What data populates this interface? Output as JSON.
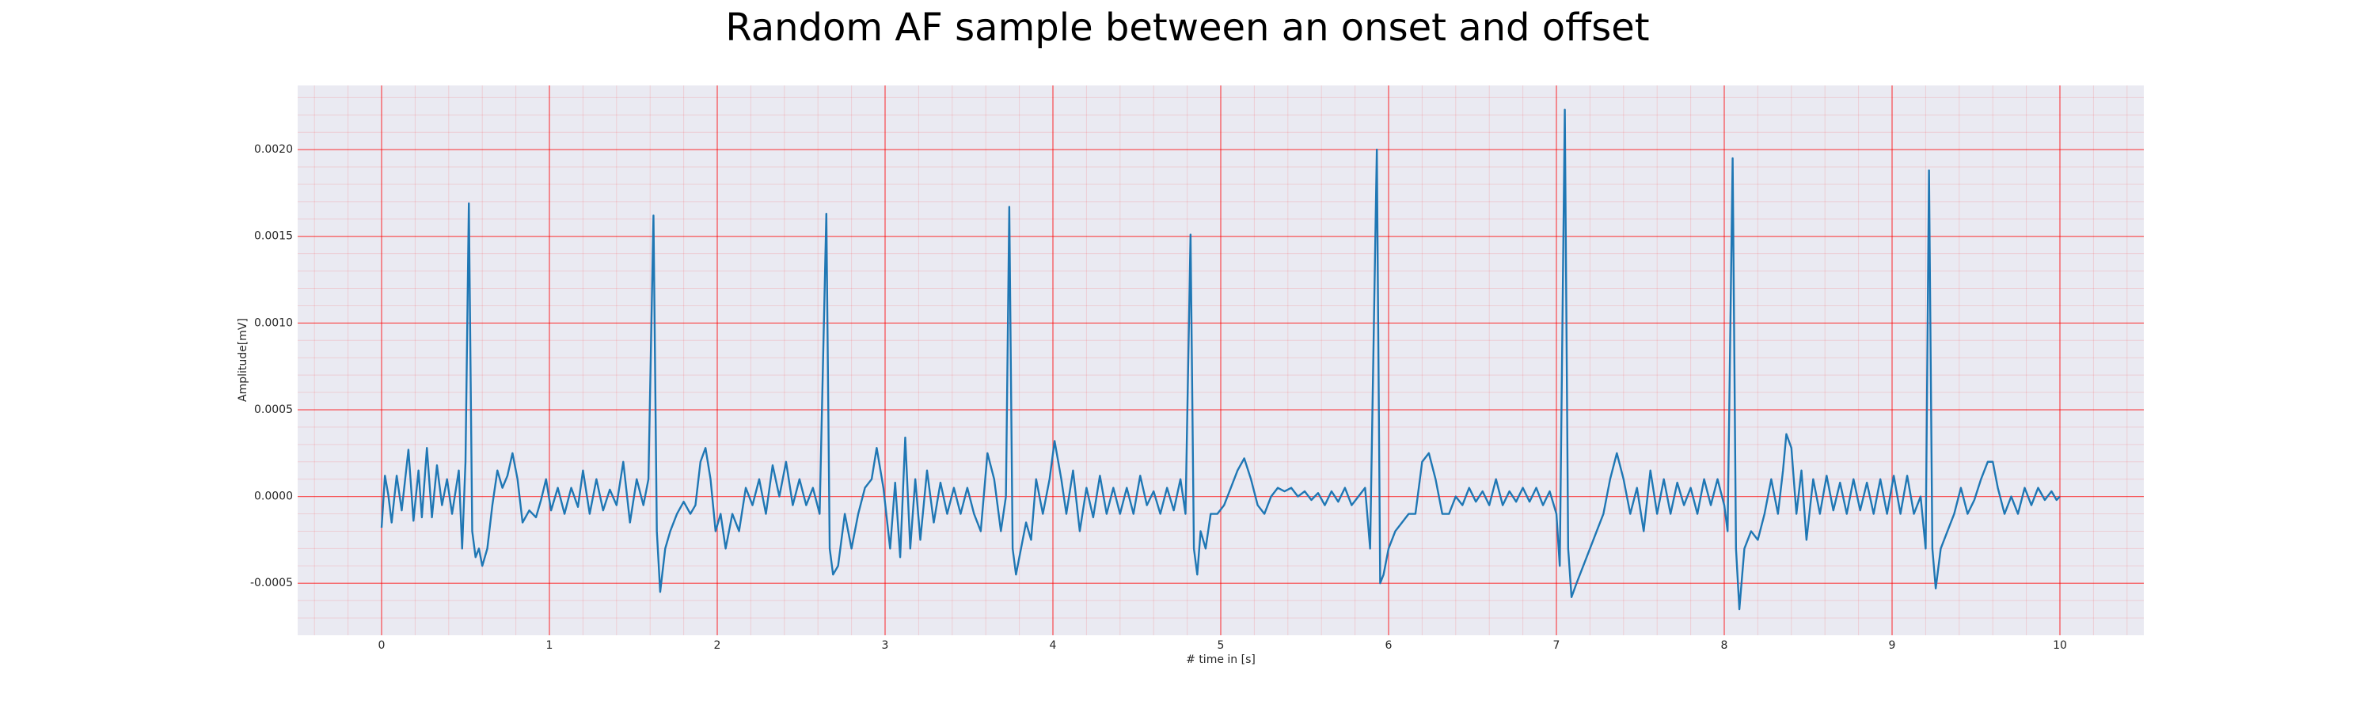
{
  "chart_data": {
    "type": "line",
    "title": "Random AF sample between an onset and offset",
    "xlabel": "# time in [s]",
    "ylabel": "Amplitude[mV]",
    "color": "#1f77b4",
    "grid": true,
    "grid_color": "#ff0000",
    "background": "#eaeaf2",
    "xlim": [
      -0.5,
      10.5
    ],
    "ylim": [
      -0.0008,
      0.00237
    ],
    "xticks": [
      0,
      1,
      2,
      3,
      4,
      5,
      6,
      7,
      8,
      9,
      10
    ],
    "yticks": [
      -0.0005,
      {
        "value": 0,
        "label": "0.0000"
      },
      0.0005,
      {
        "value": 0.001,
        "label": "0.0010"
      },
      0.0015,
      {
        "value": 0.002,
        "label": "0.0020"
      }
    ],
    "x": [
      0,
      0.02,
      0.04,
      0.06,
      0.09,
      0.12,
      0.16,
      0.19,
      0.22,
      0.24,
      0.27,
      0.3,
      0.33,
      0.36,
      0.39,
      0.42,
      0.46,
      0.48,
      0.5,
      0.52,
      0.54,
      0.56,
      0.58,
      0.6,
      0.63,
      0.66,
      0.69,
      0.72,
      0.75,
      0.78,
      0.81,
      0.84,
      0.88,
      0.92,
      0.95,
      0.98,
      1.01,
      1.05,
      1.09,
      1.13,
      1.17,
      1.2,
      1.24,
      1.28,
      1.32,
      1.36,
      1.4,
      1.44,
      1.48,
      1.52,
      1.56,
      1.59,
      1.62,
      1.64,
      1.66,
      1.69,
      1.72,
      1.76,
      1.8,
      1.84,
      1.87,
      1.9,
      1.93,
      1.96,
      1.99,
      2.02,
      2.05,
      2.09,
      2.13,
      2.17,
      2.21,
      2.25,
      2.29,
      2.33,
      2.37,
      2.41,
      2.45,
      2.49,
      2.53,
      2.57,
      2.61,
      2.65,
      2.67,
      2.69,
      2.72,
      2.76,
      2.8,
      2.84,
      2.88,
      2.92,
      2.95,
      2.99,
      3.03,
      3.06,
      3.09,
      3.12,
      3.15,
      3.18,
      3.21,
      3.25,
      3.29,
      3.33,
      3.37,
      3.41,
      3.45,
      3.49,
      3.53,
      3.57,
      3.61,
      3.65,
      3.69,
      3.72,
      3.74,
      3.76,
      3.78,
      3.81,
      3.84,
      3.87,
      3.9,
      3.94,
      3.98,
      4.01,
      4.05,
      4.08,
      4.12,
      4.16,
      4.2,
      4.24,
      4.28,
      4.32,
      4.36,
      4.4,
      4.44,
      4.48,
      4.52,
      4.56,
      4.6,
      4.64,
      4.68,
      4.72,
      4.76,
      4.79,
      4.82,
      4.84,
      4.86,
      4.88,
      4.91,
      4.94,
      4.98,
      5.02,
      5.06,
      5.1,
      5.14,
      5.18,
      5.22,
      5.26,
      5.3,
      5.34,
      5.38,
      5.42,
      5.46,
      5.5,
      5.54,
      5.58,
      5.62,
      5.66,
      5.7,
      5.74,
      5.78,
      5.82,
      5.86,
      5.89,
      5.93,
      5.95,
      5.97,
      6.0,
      6.04,
      6.08,
      6.12,
      6.16,
      6.2,
      6.24,
      6.28,
      6.32,
      6.36,
      6.4,
      6.44,
      6.48,
      6.52,
      6.56,
      6.6,
      6.64,
      6.68,
      6.72,
      6.76,
      6.8,
      6.84,
      6.88,
      6.92,
      6.96,
      7.0,
      7.02,
      7.05,
      7.07,
      7.09,
      7.12,
      7.16,
      7.2,
      7.24,
      7.28,
      7.32,
      7.36,
      7.4,
      7.44,
      7.48,
      7.52,
      7.56,
      7.6,
      7.64,
      7.68,
      7.72,
      7.76,
      7.8,
      7.84,
      7.88,
      7.92,
      7.96,
      8.0,
      8.02,
      8.05,
      8.07,
      8.09,
      8.12,
      8.16,
      8.2,
      8.24,
      8.28,
      8.32,
      8.35,
      8.37,
      8.4,
      8.43,
      8.46,
      8.49,
      8.53,
      8.57,
      8.61,
      8.65,
      8.69,
      8.73,
      8.77,
      8.81,
      8.85,
      8.89,
      8.93,
      8.97,
      9.01,
      9.05,
      9.09,
      9.13,
      9.17,
      9.2,
      9.22,
      9.24,
      9.26,
      9.29,
      9.33,
      9.37,
      9.41,
      9.45,
      9.49,
      9.53,
      9.57,
      9.6,
      9.63,
      9.67,
      9.71,
      9.75,
      9.79,
      9.83,
      9.87,
      9.91,
      9.95,
      9.98,
      10
    ],
    "values": [
      -0.00018,
      0.00012,
      1e-05,
      -0.00015,
      0.00012,
      -8e-05,
      0.00027,
      -0.00014,
      0.00015,
      -0.00012,
      0.00028,
      -0.00012,
      0.00018,
      -5e-05,
      0.0001,
      -0.0001,
      0.00015,
      -0.0003,
      0.0002,
      0.00169,
      -0.0002,
      -0.00035,
      -0.0003,
      -0.0004,
      -0.0003,
      -5e-05,
      0.00015,
      5e-05,
      0.00012,
      0.00025,
      0.0001,
      -0.00015,
      -8e-05,
      -0.00012,
      -2e-05,
      0.0001,
      -8e-05,
      5e-05,
      -0.0001,
      5e-05,
      -6e-05,
      0.00015,
      -0.0001,
      0.0001,
      -8e-05,
      4e-05,
      -5e-05,
      0.0002,
      -0.00015,
      0.0001,
      -5e-05,
      0.0001,
      0.00162,
      -0.0002,
      -0.00055,
      -0.0003,
      -0.0002,
      -0.0001,
      -3e-05,
      -0.0001,
      -5e-05,
      0.0002,
      0.00028,
      0.0001,
      -0.0002,
      -0.0001,
      -0.0003,
      -0.0001,
      -0.0002,
      5e-05,
      -5e-05,
      0.0001,
      -0.0001,
      0.00018,
      0,
      0.0002,
      -5e-05,
      0.0001,
      -5e-05,
      5e-05,
      -0.0001,
      0.00163,
      -0.0003,
      -0.00045,
      -0.0004,
      -0.0001,
      -0.0003,
      -0.0001,
      5e-05,
      0.0001,
      0.00028,
      5e-05,
      -0.0003,
      8e-05,
      -0.00035,
      0.00034,
      -0.0003,
      0.0001,
      -0.00025,
      0.00015,
      -0.00015,
      8e-05,
      -0.0001,
      5e-05,
      -0.0001,
      5e-05,
      -0.0001,
      -0.0002,
      0.00025,
      0.0001,
      -0.0002,
      0,
      0.00167,
      -0.0003,
      -0.00045,
      -0.0003,
      -0.00015,
      -0.00025,
      0.0001,
      -0.0001,
      0.0001,
      0.00032,
      0.0001,
      -0.0001,
      0.00015,
      -0.0002,
      5e-05,
      -0.00012,
      0.00012,
      -0.0001,
      5e-05,
      -0.0001,
      5e-05,
      -0.0001,
      0.00012,
      -5e-05,
      3e-05,
      -0.0001,
      5e-05,
      -8e-05,
      0.0001,
      -0.0001,
      0.00151,
      -0.0003,
      -0.00045,
      -0.0002,
      -0.0003,
      -0.0001,
      -0.0001,
      -5e-05,
      5e-05,
      0.00015,
      0.00022,
      0.0001,
      -5e-05,
      -0.0001,
      0,
      5e-05,
      3e-05,
      5e-05,
      0,
      3e-05,
      -2e-05,
      2e-05,
      -5e-05,
      3e-05,
      -3e-05,
      5e-05,
      -5e-05,
      0,
      5e-05,
      -0.0003,
      0.002,
      -0.0005,
      -0.00045,
      -0.0003,
      -0.0002,
      -0.00015,
      -0.0001,
      -0.0001,
      0.0002,
      0.00025,
      0.0001,
      -0.0001,
      -0.0001,
      0,
      -5e-05,
      5e-05,
      -3e-05,
      3e-05,
      -5e-05,
      0.0001,
      -5e-05,
      3e-05,
      -3e-05,
      5e-05,
      -3e-05,
      5e-05,
      -5e-05,
      3e-05,
      -0.0001,
      -0.0004,
      0.00223,
      -0.0003,
      -0.00058,
      -0.0005,
      -0.0004,
      -0.0003,
      -0.0002,
      -0.0001,
      0.0001,
      0.00025,
      0.0001,
      -0.0001,
      5e-05,
      -0.0002,
      0.00015,
      -0.0001,
      0.0001,
      -0.0001,
      8e-05,
      -5e-05,
      5e-05,
      -0.0001,
      0.0001,
      -5e-05,
      0.0001,
      -5e-05,
      -0.0002,
      0.00195,
      -0.0003,
      -0.00065,
      -0.0003,
      -0.0002,
      -0.00025,
      -0.0001,
      0.0001,
      -0.0001,
      0.00015,
      0.00036,
      0.00028,
      -0.0001,
      0.00015,
      -0.00025,
      0.0001,
      -0.0001,
      0.00012,
      -8e-05,
      8e-05,
      -0.0001,
      0.0001,
      -8e-05,
      8e-05,
      -0.0001,
      0.0001,
      -0.0001,
      0.00012,
      -0.0001,
      0.00012,
      -0.0001,
      0,
      -0.0003,
      0.00188,
      -0.0003,
      -0.00053,
      -0.0003,
      -0.0002,
      -0.0001,
      5e-05,
      -0.0001,
      -2e-05,
      0.0001,
      0.0002,
      0.0002,
      5e-05,
      -0.0001,
      0,
      -0.0001,
      5e-05,
      -5e-05,
      5e-05,
      -2e-05,
      3e-05,
      -2e-05,
      0
    ]
  }
}
